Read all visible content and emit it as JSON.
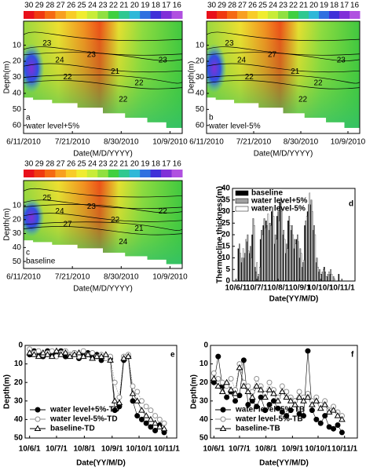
{
  "chart_data": [
    {
      "type": "contour",
      "panel_label": "a",
      "annotation": "water level+5%",
      "xlabel": "Date(M/D/YYYY)",
      "ylabel": "Depth(m)",
      "colorbar": {
        "ticks": [
          30,
          29,
          28,
          27,
          26,
          25,
          24,
          23,
          22,
          21,
          20,
          19,
          18,
          17,
          16
        ],
        "colors": [
          "#e8101a",
          "#f03a10",
          "#f56a12",
          "#f8a020",
          "#f8cc28",
          "#f0ec30",
          "#c8ec38",
          "#90e040",
          "#40d040",
          "#30c890",
          "#30b8d8",
          "#3070e0",
          "#4030d8",
          "#8030d8",
          "#b050e0"
        ]
      },
      "xlim": [
        162,
        292
      ],
      "xticks": [
        {
          "value": 162,
          "label": "6/11/2010"
        },
        {
          "value": 202,
          "label": "7/21/2010"
        },
        {
          "value": 242,
          "label": "8/30/2010"
        },
        {
          "value": 282,
          "label": "10/9/2010"
        }
      ],
      "ylim": [
        -5,
        65
      ],
      "y_inverted": true,
      "yticks": [
        10,
        20,
        30,
        40,
        50,
        60
      ],
      "contour_labels": [
        "23",
        "24",
        "22",
        "23",
        "21",
        "22",
        "23",
        "22"
      ]
    },
    {
      "type": "contour",
      "panel_label": "b",
      "annotation": "water level-5%",
      "xlabel": "Date(M/D/YYYY)",
      "ylabel": "Depth(m)",
      "colorbar": {
        "ticks": [
          30,
          29,
          28,
          27,
          26,
          25,
          24,
          23,
          22,
          21,
          20,
          19,
          18,
          17,
          16
        ],
        "colors": [
          "#e8101a",
          "#f03a10",
          "#f56a12",
          "#f8a020",
          "#f8cc28",
          "#f0ec30",
          "#c8ec38",
          "#90e040",
          "#40d040",
          "#30c890",
          "#30b8d8",
          "#3070e0",
          "#4030d8",
          "#8030d8",
          "#b050e0"
        ]
      },
      "xlim": [
        162,
        292
      ],
      "xticks": [
        {
          "value": 162,
          "label": "6/11/2010"
        },
        {
          "value": 202,
          "label": "7/21/2010"
        },
        {
          "value": 242,
          "label": "8/30/2010"
        },
        {
          "value": 282,
          "label": "10/9/2010"
        }
      ],
      "ylim": [
        -5,
        65
      ],
      "y_inverted": true,
      "yticks": [
        10,
        20,
        30,
        40,
        50,
        60
      ],
      "contour_labels": [
        "23",
        "24",
        "22",
        "27",
        "21",
        "22",
        "23",
        "22"
      ]
    },
    {
      "type": "contour",
      "panel_label": "c",
      "annotation": "baseline",
      "xlabel": "Date(M/D/YYYY)",
      "ylabel": "Depth(m)",
      "colorbar": {
        "ticks": [
          30,
          29,
          28,
          27,
          26,
          25,
          24,
          23,
          22,
          21,
          20,
          19,
          18,
          17,
          16
        ],
        "colors": [
          "#e8101a",
          "#f03a10",
          "#f56a12",
          "#f8a020",
          "#f8cc28",
          "#f0ec30",
          "#c8ec38",
          "#90e040",
          "#40d040",
          "#30c890",
          "#30b8d8",
          "#3070e0",
          "#4030d8",
          "#8030d8",
          "#b050e0"
        ]
      },
      "xlim": [
        162,
        292
      ],
      "xticks": [
        {
          "value": 162,
          "label": "6/11/2010"
        },
        {
          "value": 202,
          "label": "7/21/2010"
        },
        {
          "value": 242,
          "label": "8/30/2010"
        },
        {
          "value": 282,
          "label": "10/9/2010"
        }
      ],
      "ylim": [
        -8,
        55
      ],
      "y_inverted": true,
      "yticks": [
        10,
        20,
        30,
        40,
        50
      ],
      "contour_labels": [
        "25",
        "24",
        "27",
        "23",
        "22",
        "21",
        "22",
        "24"
      ]
    },
    {
      "type": "bar",
      "panel_label": "d",
      "xlabel": "Date(YY/M/D)",
      "ylabel": "Thermocline thickness(m)",
      "legend": "upper left",
      "xlim": [
        -5,
        172
      ],
      "xticks": [
        {
          "value": 0,
          "label": "10/6/1"
        },
        {
          "value": 30,
          "label": "10/7/1"
        },
        {
          "value": 61,
          "label": "10/8/1"
        },
        {
          "value": 92,
          "label": "10/9/1"
        },
        {
          "value": 122,
          "label": "10/10/1"
        },
        {
          "value": 153,
          "label": "10/11/1"
        }
      ],
      "ylim": [
        0,
        40
      ],
      "yticks": [
        0,
        5,
        10,
        15,
        20,
        25,
        30,
        35,
        40
      ],
      "x": [
        5,
        9,
        13,
        17,
        21,
        25,
        29,
        33,
        37,
        41,
        45,
        49,
        53,
        57,
        61,
        65,
        69,
        73,
        77,
        81,
        85,
        89,
        93,
        97,
        101,
        105,
        109,
        113,
        117,
        121,
        125,
        129,
        133,
        137,
        141,
        150
      ],
      "series": [
        {
          "name": "baseline",
          "color": "#000000",
          "values": [
            14,
            8,
            10,
            17,
            12,
            20,
            6,
            2,
            18,
            24,
            26,
            22,
            30,
            16,
            28,
            34,
            20,
            12,
            26,
            22,
            14,
            18,
            10,
            6,
            24,
            30,
            33,
            22,
            8,
            4,
            3,
            6,
            2,
            3,
            0,
            3
          ]
        },
        {
          "name": "water level+5%",
          "color": "#a0a0a0",
          "values": [
            16,
            10,
            12,
            20,
            15,
            27,
            4,
            3,
            22,
            27,
            24,
            25,
            32,
            20,
            30,
            36,
            22,
            16,
            28,
            24,
            18,
            20,
            14,
            8,
            26,
            33,
            35,
            24,
            10,
            5,
            4,
            4,
            3,
            5,
            2,
            0
          ]
        },
        {
          "name": "water level-5%",
          "color": "#ffffff",
          "values": [
            12,
            14,
            18,
            13,
            10,
            24,
            8,
            6,
            20,
            23,
            29,
            24,
            28,
            18,
            26,
            30,
            18,
            14,
            24,
            20,
            16,
            17,
            12,
            9,
            28,
            38,
            30,
            20,
            6,
            3,
            5,
            2,
            4,
            3,
            1,
            0
          ]
        }
      ]
    },
    {
      "type": "scatter",
      "panel_label": "e",
      "xlabel": "Date(YY/M/D)",
      "ylabel": "Depth(m)",
      "legend": "lower left",
      "xlim": [
        -5,
        164
      ],
      "xticks": [
        {
          "value": 0,
          "label": "10/6/1"
        },
        {
          "value": 30,
          "label": "10/7/1"
        },
        {
          "value": 61,
          "label": "10/8/1"
        },
        {
          "value": 92,
          "label": "10/9/1"
        },
        {
          "value": 122,
          "label": "10/10/1"
        },
        {
          "value": 153,
          "label": "10/11/1"
        }
      ],
      "ylim": [
        0,
        50
      ],
      "y_inverted": true,
      "yticks": [
        0,
        10,
        20,
        30,
        40,
        50
      ],
      "x": [
        0,
        5,
        10,
        15,
        20,
        25,
        30,
        35,
        40,
        45,
        50,
        55,
        60,
        65,
        70,
        75,
        80,
        85,
        90,
        95,
        100,
        105,
        110,
        115,
        120,
        125,
        130,
        135,
        140,
        145,
        150
      ],
      "series": [
        {
          "name": "water level+5%-TD",
          "color": "#000000",
          "marker": "circle-filled",
          "values": [
            5,
            3,
            4,
            6,
            3,
            5,
            4,
            3,
            6,
            5,
            4,
            7,
            5,
            4,
            6,
            5,
            8,
            6,
            7,
            35,
            33,
            8,
            6,
            30,
            38,
            40,
            42,
            44,
            46,
            43,
            47
          ]
        },
        {
          "name": "water level-5%-TD",
          "color": "#909090",
          "marker": "circle-open",
          "values": [
            2,
            4,
            3,
            5,
            4,
            3,
            6,
            4,
            3,
            5,
            4,
            6,
            3,
            5,
            4,
            6,
            5,
            7,
            6,
            20,
            28,
            6,
            5,
            22,
            25,
            30,
            33,
            35,
            38,
            40,
            42
          ]
        },
        {
          "name": "baseline-TD",
          "color": "#000000",
          "marker": "triangle-open",
          "values": [
            4,
            5,
            6,
            4,
            5,
            6,
            3,
            5,
            4,
            6,
            5,
            4,
            6,
            5,
            7,
            6,
            6,
            5,
            8,
            30,
            31,
            7,
            6,
            26,
            30,
            35,
            38,
            40,
            42,
            44,
            45
          ]
        }
      ]
    },
    {
      "type": "scatter",
      "panel_label": "f",
      "xlabel": "Date(YY/M/D)",
      "ylabel": "Depth(m)",
      "legend": "lower left",
      "xlim": [
        -4,
        168
      ],
      "xticks": [
        {
          "value": 0,
          "label": "10/6/1"
        },
        {
          "value": 30,
          "label": "10/7/1"
        },
        {
          "value": 61,
          "label": "10/8/1"
        },
        {
          "value": 92,
          "label": "10/9/1"
        },
        {
          "value": 122,
          "label": "10/10/1"
        },
        {
          "value": 153,
          "label": "10/11/1"
        }
      ],
      "ylim": [
        0,
        50
      ],
      "y_inverted": true,
      "yticks": [
        0,
        10,
        20,
        30,
        40,
        50
      ],
      "x": [
        0,
        5,
        10,
        15,
        20,
        25,
        30,
        35,
        40,
        45,
        50,
        55,
        60,
        65,
        70,
        75,
        80,
        85,
        90,
        95,
        100,
        105,
        110,
        115,
        120,
        125,
        130,
        135,
        140,
        145,
        150
      ],
      "series": [
        {
          "name": "water level+5%-TB",
          "color": "#000000",
          "marker": "circle-filled",
          "values": [
            20,
            6,
            22,
            28,
            25,
            30,
            27,
            8,
            32,
            30,
            33,
            28,
            35,
            32,
            30,
            34,
            36,
            38,
            35,
            30,
            37,
            38,
            3,
            35,
            40,
            42,
            38,
            44,
            45,
            43,
            47
          ]
        },
        {
          "name": "water level-5%-TB",
          "color": "#909090",
          "marker": "circle-open",
          "values": [
            15,
            18,
            20,
            22,
            18,
            24,
            10,
            20,
            22,
            25,
            18,
            22,
            26,
            20,
            24,
            28,
            22,
            25,
            28,
            30,
            25,
            28,
            26,
            30,
            28,
            32,
            30,
            35,
            33,
            36,
            38
          ]
        },
        {
          "name": "baseline-TB",
          "color": "#000000",
          "marker": "triangle-open",
          "values": [
            18,
            22,
            25,
            20,
            24,
            26,
            12,
            22,
            25,
            28,
            22,
            24,
            28,
            24,
            26,
            30,
            25,
            28,
            30,
            32,
            28,
            30,
            28,
            32,
            30,
            34,
            32,
            36,
            35,
            38,
            40
          ]
        }
      ]
    }
  ]
}
